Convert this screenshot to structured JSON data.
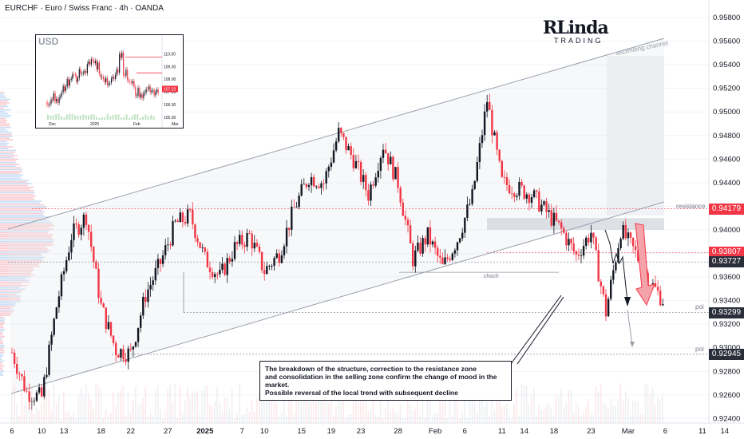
{
  "header": {
    "title": "EURCHF · Euro / Swiss Franc · 4h · OANDA"
  },
  "logo": {
    "main": "RLinda",
    "sub": "TRADING"
  },
  "annotations": {
    "ascending_channel": "ascending channel",
    "resistance": "resistance",
    "choch": "choch",
    "poi_1": "poi",
    "poi_2": "poi",
    "note_lines": [
      "The breakdown of the structure, correction to the resistance zone",
      "and consolidation in the selling zone confirm the change of mood in the market.",
      "Possible reversal of the local trend with subsequent decline"
    ]
  },
  "price_tags": [
    {
      "value": "0.94179",
      "color": "#f23645"
    },
    {
      "value": "0.93807",
      "color": "#f23645"
    },
    {
      "value": "0.93727",
      "color": "#2a2e39"
    },
    {
      "value": "0.93299",
      "color": "#2a2e39"
    },
    {
      "value": "0.92945",
      "color": "#2a2e39"
    }
  ],
  "colors": {
    "up": "#131722",
    "down": "#f23645",
    "channel": "#9aa0ab",
    "zone": "#cfd3da",
    "arrow": "#f23645"
  },
  "chart_data": [
    {
      "type": "candlestick",
      "title": "EURCHF · Euro / Swiss Franc · 4h · OANDA",
      "y_axis_ticks": [
        0.958,
        0.956,
        0.954,
        0.952,
        0.95,
        0.948,
        0.946,
        0.944,
        0.942,
        0.94,
        0.938,
        0.936,
        0.934,
        0.932,
        0.93,
        0.928,
        0.926,
        0.924
      ],
      "y_tick_labels": [
        "0.95800",
        "0.95600",
        "0.95400",
        "0.95200",
        "0.95000",
        "0.94800",
        "0.94600",
        "0.94400",
        "0.94200",
        "0.94000",
        "0.93800",
        "0.93600",
        "0.93400",
        "0.93200",
        "0.93000",
        "0.92800",
        "0.92600",
        "0.92400"
      ],
      "ylim": [
        0.9232,
        0.9594
      ],
      "x_tick_labels": [
        "6",
        "10",
        "13",
        "18",
        "22",
        "27",
        "2025",
        "7",
        "10",
        "15",
        "19",
        "23",
        "28",
        "Feb",
        "6",
        "11",
        "14",
        "18",
        "23",
        "Mar",
        "6",
        "11",
        "14"
      ],
      "x_ticks": [
        0,
        4,
        7,
        12,
        16,
        21,
        26,
        31,
        34,
        39,
        43,
        47,
        52,
        57,
        61,
        66,
        69,
        73,
        78,
        83,
        88,
        93,
        96
      ],
      "close_path": {
        "x": [
          0,
          2,
          4,
          6,
          8,
          10,
          12,
          14,
          16,
          18,
          20,
          22,
          24,
          26,
          28,
          30,
          32,
          34,
          36,
          38,
          40,
          42,
          44,
          46,
          48,
          50,
          52,
          54,
          56,
          58,
          60,
          62,
          64,
          66,
          68,
          70,
          72,
          74,
          76,
          78,
          80,
          82,
          84,
          86,
          88
        ],
        "y": [
          0.9296,
          0.9262,
          0.9258,
          0.9335,
          0.9395,
          0.9412,
          0.9335,
          0.9298,
          0.9295,
          0.9345,
          0.9372,
          0.9405,
          0.9412,
          0.9375,
          0.936,
          0.9385,
          0.9395,
          0.9365,
          0.938,
          0.9418,
          0.9445,
          0.944,
          0.9482,
          0.946,
          0.943,
          0.9472,
          0.944,
          0.9375,
          0.9395,
          0.9368,
          0.9392,
          0.9428,
          0.951,
          0.944,
          0.9435,
          0.943,
          0.9415,
          0.94,
          0.9378,
          0.9398,
          0.933,
          0.94,
          0.938,
          0.9355,
          0.9338
        ]
      },
      "horizontal_levels": [
        {
          "label": "resistance",
          "value": 0.94179
        },
        {
          "label": "",
          "value": 0.93807
        },
        {
          "label": "",
          "value": 0.93727
        },
        {
          "label": "poi",
          "value": 0.93299
        },
        {
          "label": "poi",
          "value": 0.92945
        }
      ],
      "resistance_zone": [
        0.94,
        0.941
      ],
      "channel_label": "ascending channel",
      "last_price": 0.93727
    },
    {
      "type": "line",
      "title": "USD",
      "x_tick_labels": [
        "Dec",
        "2025",
        "Feb",
        "Mar"
      ],
      "y_tick_labels": [
        "110.00",
        "109.00",
        "108.00",
        "107.00",
        "106.00",
        "105.00"
      ],
      "ylim": [
        104.8,
        110.6
      ],
      "last_value_label": "107.23",
      "values": [
        106.2,
        106.6,
        106.1,
        106.9,
        107.4,
        107.8,
        108.3,
        108.0,
        108.7,
        108.4,
        109.2,
        109.6,
        109.1,
        108.4,
        108.0,
        107.7,
        108.2,
        108.7,
        109.8,
        108.6,
        108.1,
        107.5,
        107.0,
        106.6,
        106.9,
        107.2,
        106.8,
        107.23
      ]
    }
  ]
}
